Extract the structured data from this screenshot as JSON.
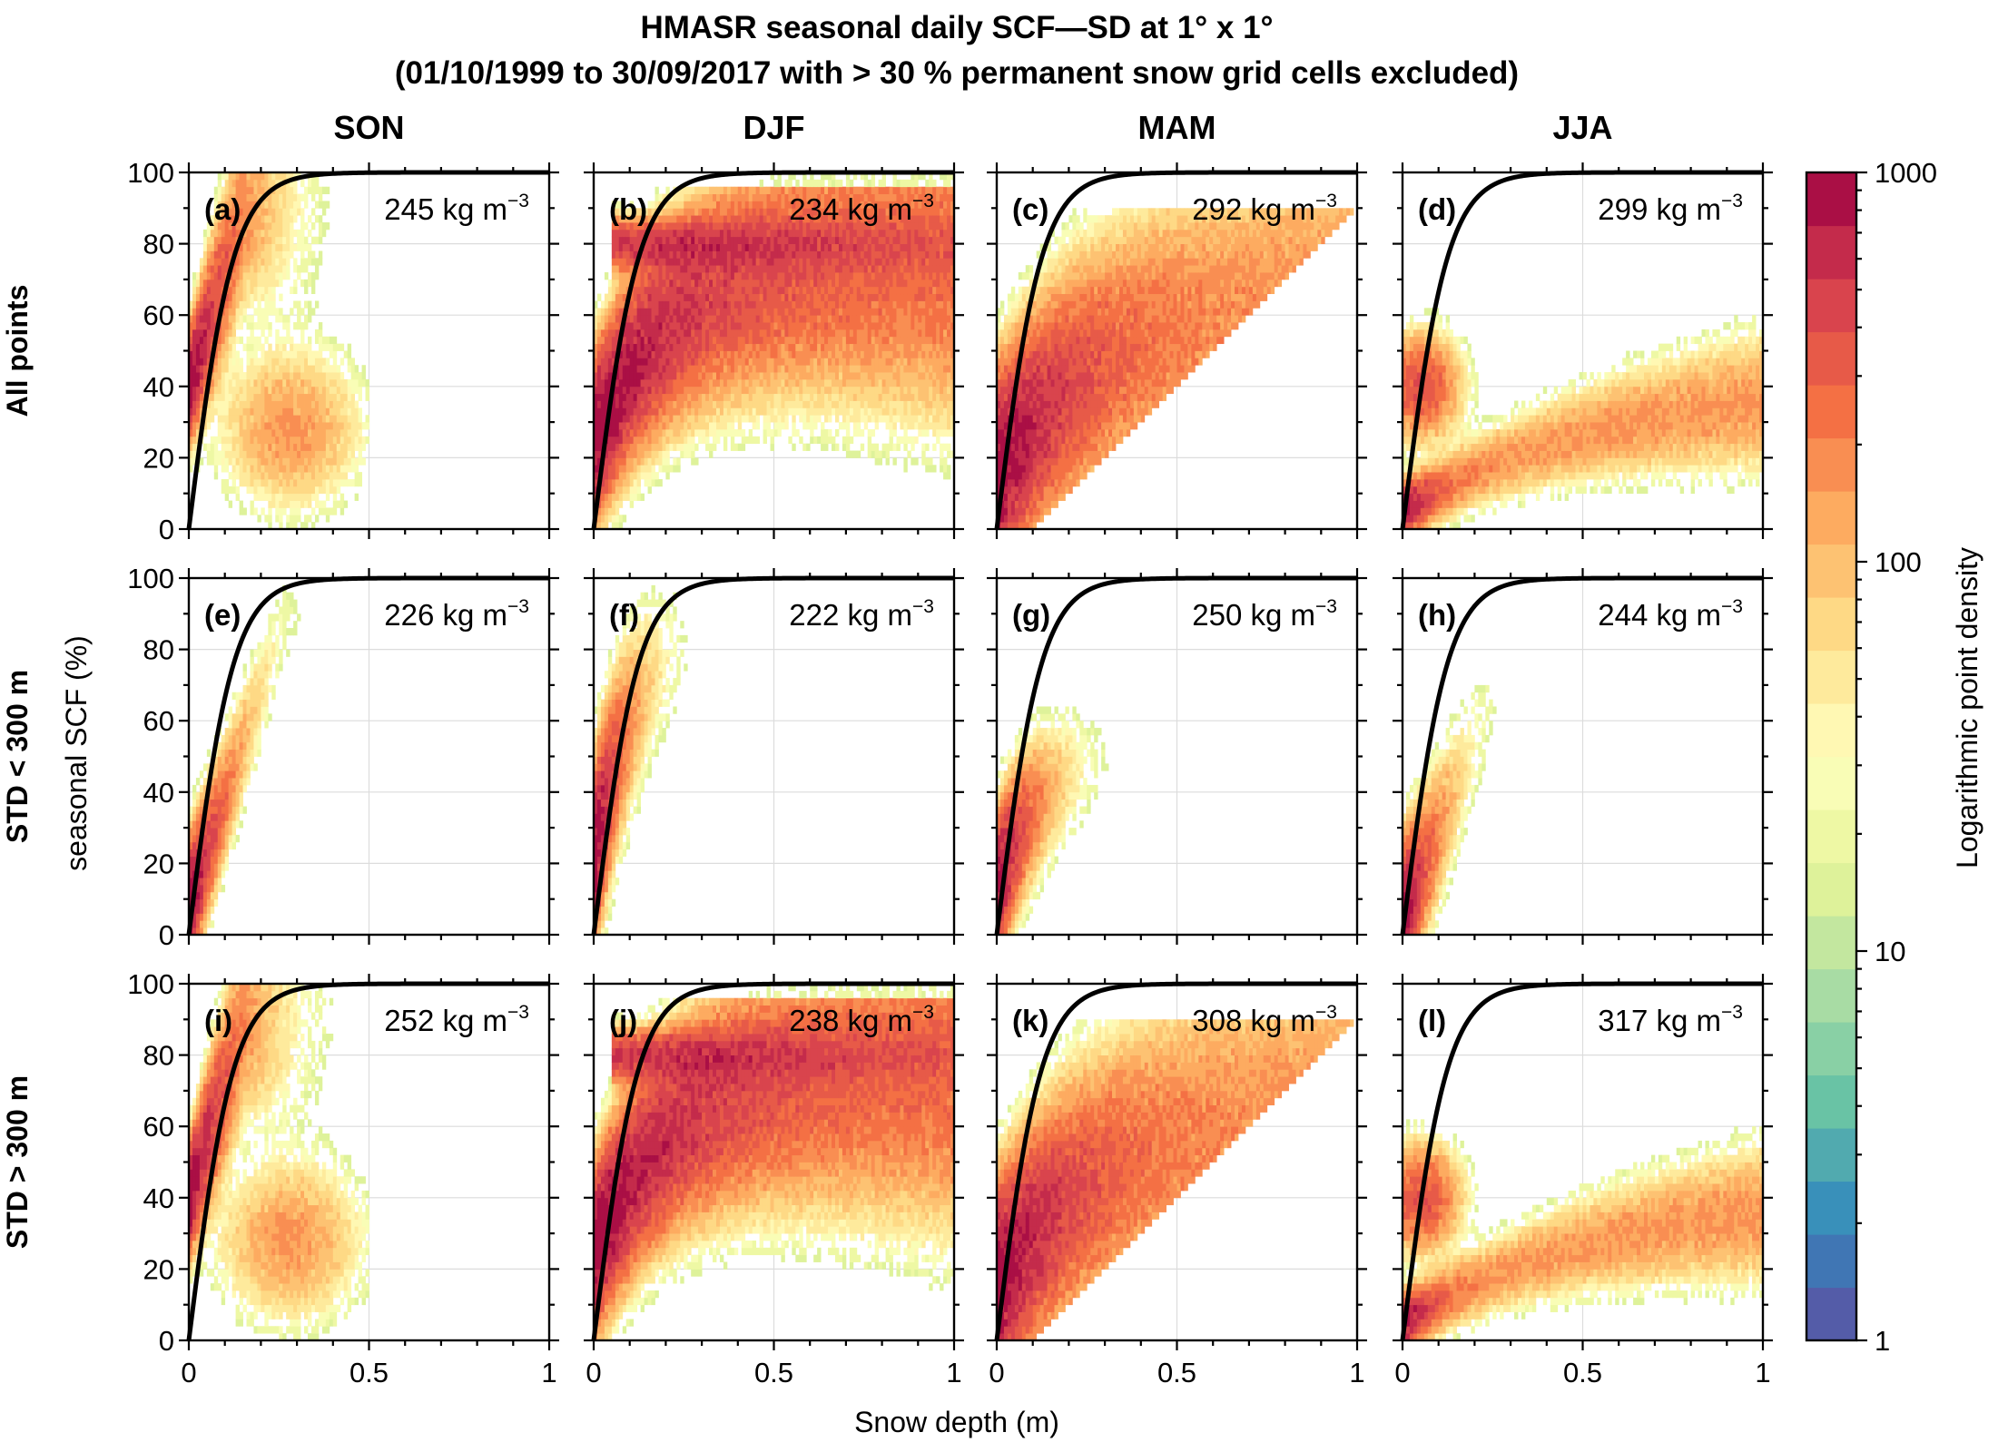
{
  "title_line1": "HMASR seasonal daily SCF—SD at 1° x 1°",
  "title_line2": "(01/10/1999 to 30/09/2017 with > 30 % permanent snow grid cells excluded)",
  "xlabel": "Snow depth (m)",
  "ylabel": "seasonal SCF (%)",
  "colorbar_label": "Logarithmic point density",
  "colorbar_ticks": [
    "1",
    "10",
    "100",
    "1000"
  ],
  "x_ticks": [
    "0",
    "0.5",
    "1"
  ],
  "y_ticks": [
    "0",
    "20",
    "40",
    "60",
    "80",
    "100"
  ],
  "density_unit": "kg m",
  "density_exp": "−3",
  "chart_data": {
    "type": "heatmap",
    "seasons": [
      "SON",
      "DJF",
      "MAM",
      "JJA"
    ],
    "rows": [
      "All points",
      "STD < 300 m",
      "STD > 300 m"
    ],
    "xlim": [
      0,
      1
    ],
    "ylim": [
      0,
      100
    ],
    "colorbar": {
      "scale": "log",
      "range": [
        1,
        1000
      ]
    },
    "colormap": [
      "#5e4fa2",
      "#3288bd",
      "#66c2a5",
      "#abdda4",
      "#e6f598",
      "#ffffbf",
      "#fee08b",
      "#fdae61",
      "#f46d43",
      "#d53e4f",
      "#9e0142"
    ],
    "panels": [
      {
        "label": "(a)",
        "density": 245,
        "season": "SON",
        "row": "All points"
      },
      {
        "label": "(b)",
        "density": 234,
        "season": "DJF",
        "row": "All points"
      },
      {
        "label": "(c)",
        "density": 292,
        "season": "MAM",
        "row": "All points"
      },
      {
        "label": "(d)",
        "density": 299,
        "season": "JJA",
        "row": "All points"
      },
      {
        "label": "(e)",
        "density": 226,
        "season": "SON",
        "row": "STD < 300 m"
      },
      {
        "label": "(f)",
        "density": 222,
        "season": "DJF",
        "row": "STD < 300 m"
      },
      {
        "label": "(g)",
        "density": 250,
        "season": "MAM",
        "row": "STD < 300 m"
      },
      {
        "label": "(h)",
        "density": 244,
        "season": "JJA",
        "row": "STD < 300 m"
      },
      {
        "label": "(i)",
        "density": 252,
        "season": "SON",
        "row": "STD > 300 m"
      },
      {
        "label": "(j)",
        "density": 238,
        "season": "DJF",
        "row": "STD > 300 m"
      },
      {
        "label": "(k)",
        "density": 308,
        "season": "MAM",
        "row": "STD > 300 m"
      },
      {
        "label": "(l)",
        "density": 317,
        "season": "JJA",
        "row": "STD > 300 m"
      }
    ],
    "fit_curve": {
      "form": "SCF = 100*tanh(SD/(2.5*z0))",
      "z0": 0.05
    }
  }
}
